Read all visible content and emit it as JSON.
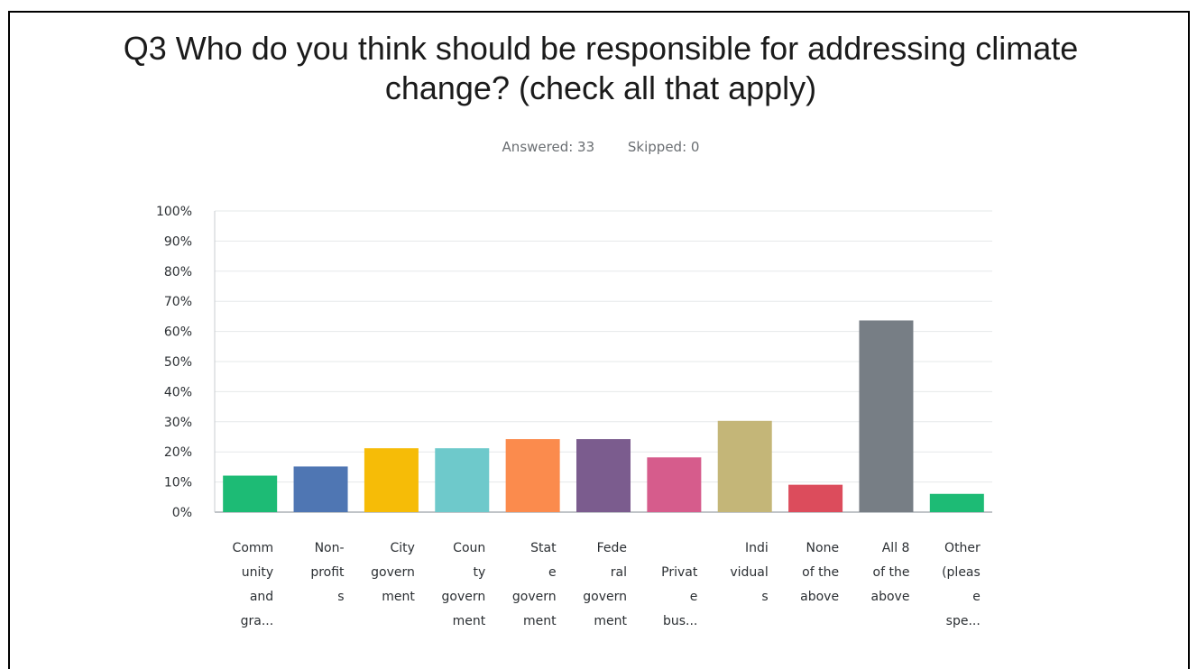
{
  "title_lines": [
    "Q3 Who do you think should be responsible for addressing climate",
    "change? (check all that apply)"
  ],
  "stats": {
    "answered": "Answered: 33",
    "skipped": "Skipped: 0"
  },
  "chart_data": {
    "type": "bar",
    "title": "Q3 Who do you think should be responsible for addressing climate change? (check all that apply)",
    "ylim": [
      0,
      100
    ],
    "yticks": [
      "0%",
      "10%",
      "20%",
      "30%",
      "40%",
      "50%",
      "60%",
      "70%",
      "80%",
      "90%",
      "100%"
    ],
    "grid": true,
    "categories": [
      [
        "Comm",
        "unity",
        "and",
        "gra..."
      ],
      [
        "Non-",
        "profit",
        "s"
      ],
      [
        "City",
        "govern",
        "ment"
      ],
      [
        "Coun",
        "ty",
        "govern",
        "ment"
      ],
      [
        "Stat",
        "e",
        "govern",
        "ment"
      ],
      [
        "Fede",
        "ral",
        "govern",
        "ment"
      ],
      [
        "",
        "Privat",
        "e",
        "bus..."
      ],
      [
        "Indi",
        "vidual",
        "s"
      ],
      [
        "None",
        "of the",
        "above"
      ],
      [
        "All 8",
        "of the",
        "above"
      ],
      [
        "Other",
        "(pleas",
        "e",
        "spe..."
      ]
    ],
    "values": [
      12.12,
      15.15,
      21.21,
      21.21,
      24.24,
      24.24,
      18.18,
      30.3,
      9.09,
      63.64,
      6.06
    ],
    "colors": [
      "#1dbb75",
      "#4f76b3",
      "#f6bc07",
      "#6ec9cb",
      "#fb8b4d",
      "#7b5c8e",
      "#d65c8c",
      "#c4b678",
      "#dc4c5c",
      "#777e85",
      "#1dbb75"
    ]
  }
}
